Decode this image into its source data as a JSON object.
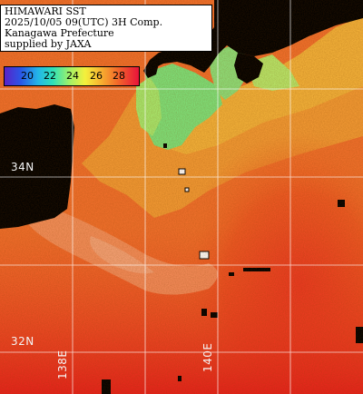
{
  "title": {
    "line1": "HIMAWARI SST",
    "line2": "2025/10/05 09(UTC) 3H Comp.",
    "line3": "Kanagawa Prefecture",
    "line4": "supplied by JAXA"
  },
  "legend": {
    "ticks": [
      "20",
      "22",
      "24",
      "26",
      "28"
    ],
    "colors": {
      "cold": "#5a22c8",
      "cool": "#23b6e8",
      "mid": "#9ef06a",
      "warm": "#f7b030",
      "hot": "#e8123a",
      "land": "#000000",
      "grid": "#ffffff"
    }
  },
  "graticule": {
    "lat_labels": [
      "34N",
      "32N"
    ],
    "lon_labels": [
      "138E",
      "140E"
    ]
  }
}
